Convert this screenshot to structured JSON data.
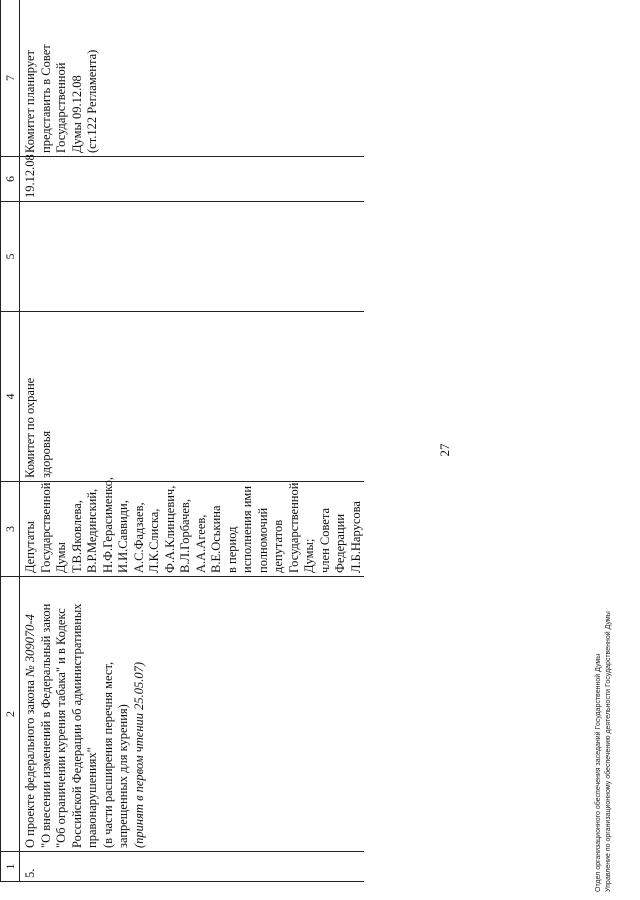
{
  "page_number": "27",
  "columns": [
    "1",
    "2",
    "3",
    "4",
    "5",
    "6",
    "7"
  ],
  "row": {
    "num": "5.",
    "bill_prefix": "О проекте федерального закона ",
    "bill_number": "№ 309070-4",
    "bill_title_lines": [
      "\"О внесении изменений в Федеральный закон",
      "\"Об ограничении курения табака\" и в Кодекс",
      "Российской Федерации об административных",
      "правонарушениях\"",
      "(в части расширения перечня мест,",
      "запрещенных для курения)"
    ],
    "adopted_note": "(принят в первом чтении 25.05.07)",
    "authors_lines": [
      "Депутаты",
      "Государственной",
      "Думы",
      "Т.В.Яковлева,",
      "В.Р.Мединский,",
      "Н.Ф.Герасименко,",
      "И.И.Саввиди,",
      "А.С.Фадзаев,",
      "Л.К.Слиска,",
      "Ф.А.Клинцевич,",
      "В.Л.Горбачев,",
      "А.А.Агеев,",
      "В.Е.Оськина",
      "в период",
      "исполнения ими",
      "полномочий",
      "депутатов",
      "Государственной",
      "Думы;",
      "член Совета",
      "Федерации",
      "Л.Б.Нарусова"
    ],
    "committee_lines": [
      "Комитет по охране",
      "здоровья"
    ],
    "col5": "",
    "date": "19.12.08",
    "plan_lines": [
      "Комитет планирует",
      "представить в Совет",
      "Государственной",
      "Думы 09.12.08",
      "(ст.122 Регламента)"
    ]
  },
  "footer": {
    "line1": "Отдел организационного обеспечения заседаний Государственной Думы",
    "line2": "Управление по организационному обеспечению деятельности Государственной Думы"
  }
}
